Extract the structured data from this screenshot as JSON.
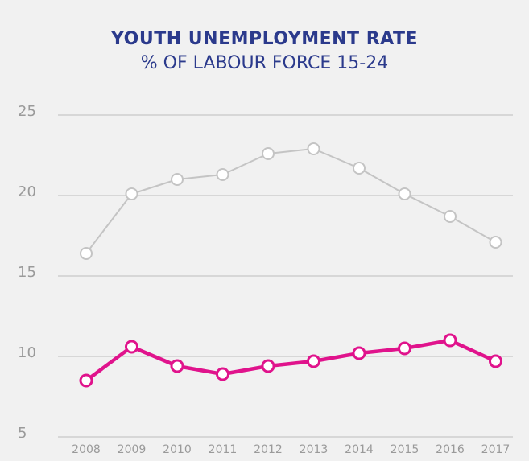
{
  "chart_data": {
    "type": "line",
    "title": "YOUTH UNEMPLOYMENT RATE",
    "subtitle": "% OF LABOUR FORCE 15-24",
    "categories": [
      "2008",
      "2009",
      "2010",
      "2011",
      "2012",
      "2013",
      "2014",
      "2015",
      "2016",
      "2017"
    ],
    "series": [
      {
        "values": [
          16.4,
          20.1,
          21.0,
          21.3,
          22.6,
          22.9,
          21.7,
          20.1,
          18.7,
          17.1
        ],
        "color": "#c4c4c4"
      },
      {
        "values": [
          8.5,
          10.6,
          9.4,
          8.9,
          9.4,
          9.7,
          10.2,
          10.5,
          11.0,
          9.7
        ],
        "color": "#e0138c"
      }
    ],
    "y_ticks": [
      5,
      10,
      15,
      20,
      25
    ],
    "ylim": [
      5,
      25
    ],
    "grid": true,
    "legend": "none"
  },
  "colors": {
    "background": "#f1f1f1",
    "title": "#2b3a8c",
    "gridline": "#c8c8c8",
    "tick_label": "#9a9a9a"
  }
}
